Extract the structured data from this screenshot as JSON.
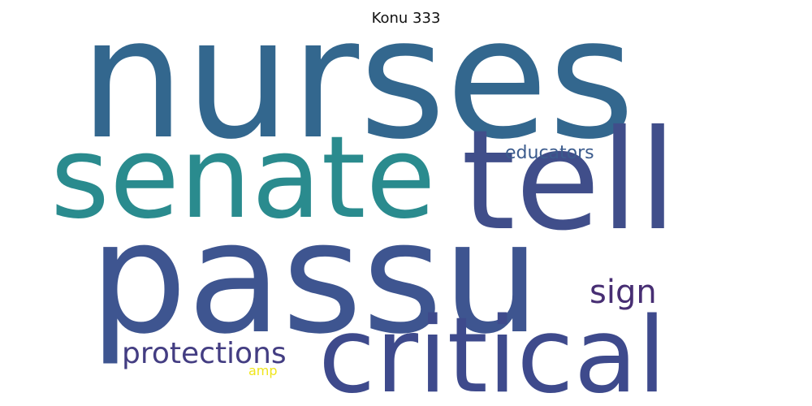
{
  "title": "Konu 333",
  "words": [
    {
      "text": "nurses",
      "color": "#33678e"
    },
    {
      "text": "senate",
      "color": "#2a8b8e"
    },
    {
      "text": "tell",
      "color": "#404e8a"
    },
    {
      "text": "passu",
      "color": "#3e5590"
    },
    {
      "text": "critical",
      "color": "#3e4a8c"
    },
    {
      "text": "sign",
      "color": "#472e73"
    },
    {
      "text": "educators",
      "color": "#3b5b8d"
    },
    {
      "text": "protections",
      "color": "#433d82"
    },
    {
      "text": "amp",
      "color": "#efe51c"
    }
  ]
}
